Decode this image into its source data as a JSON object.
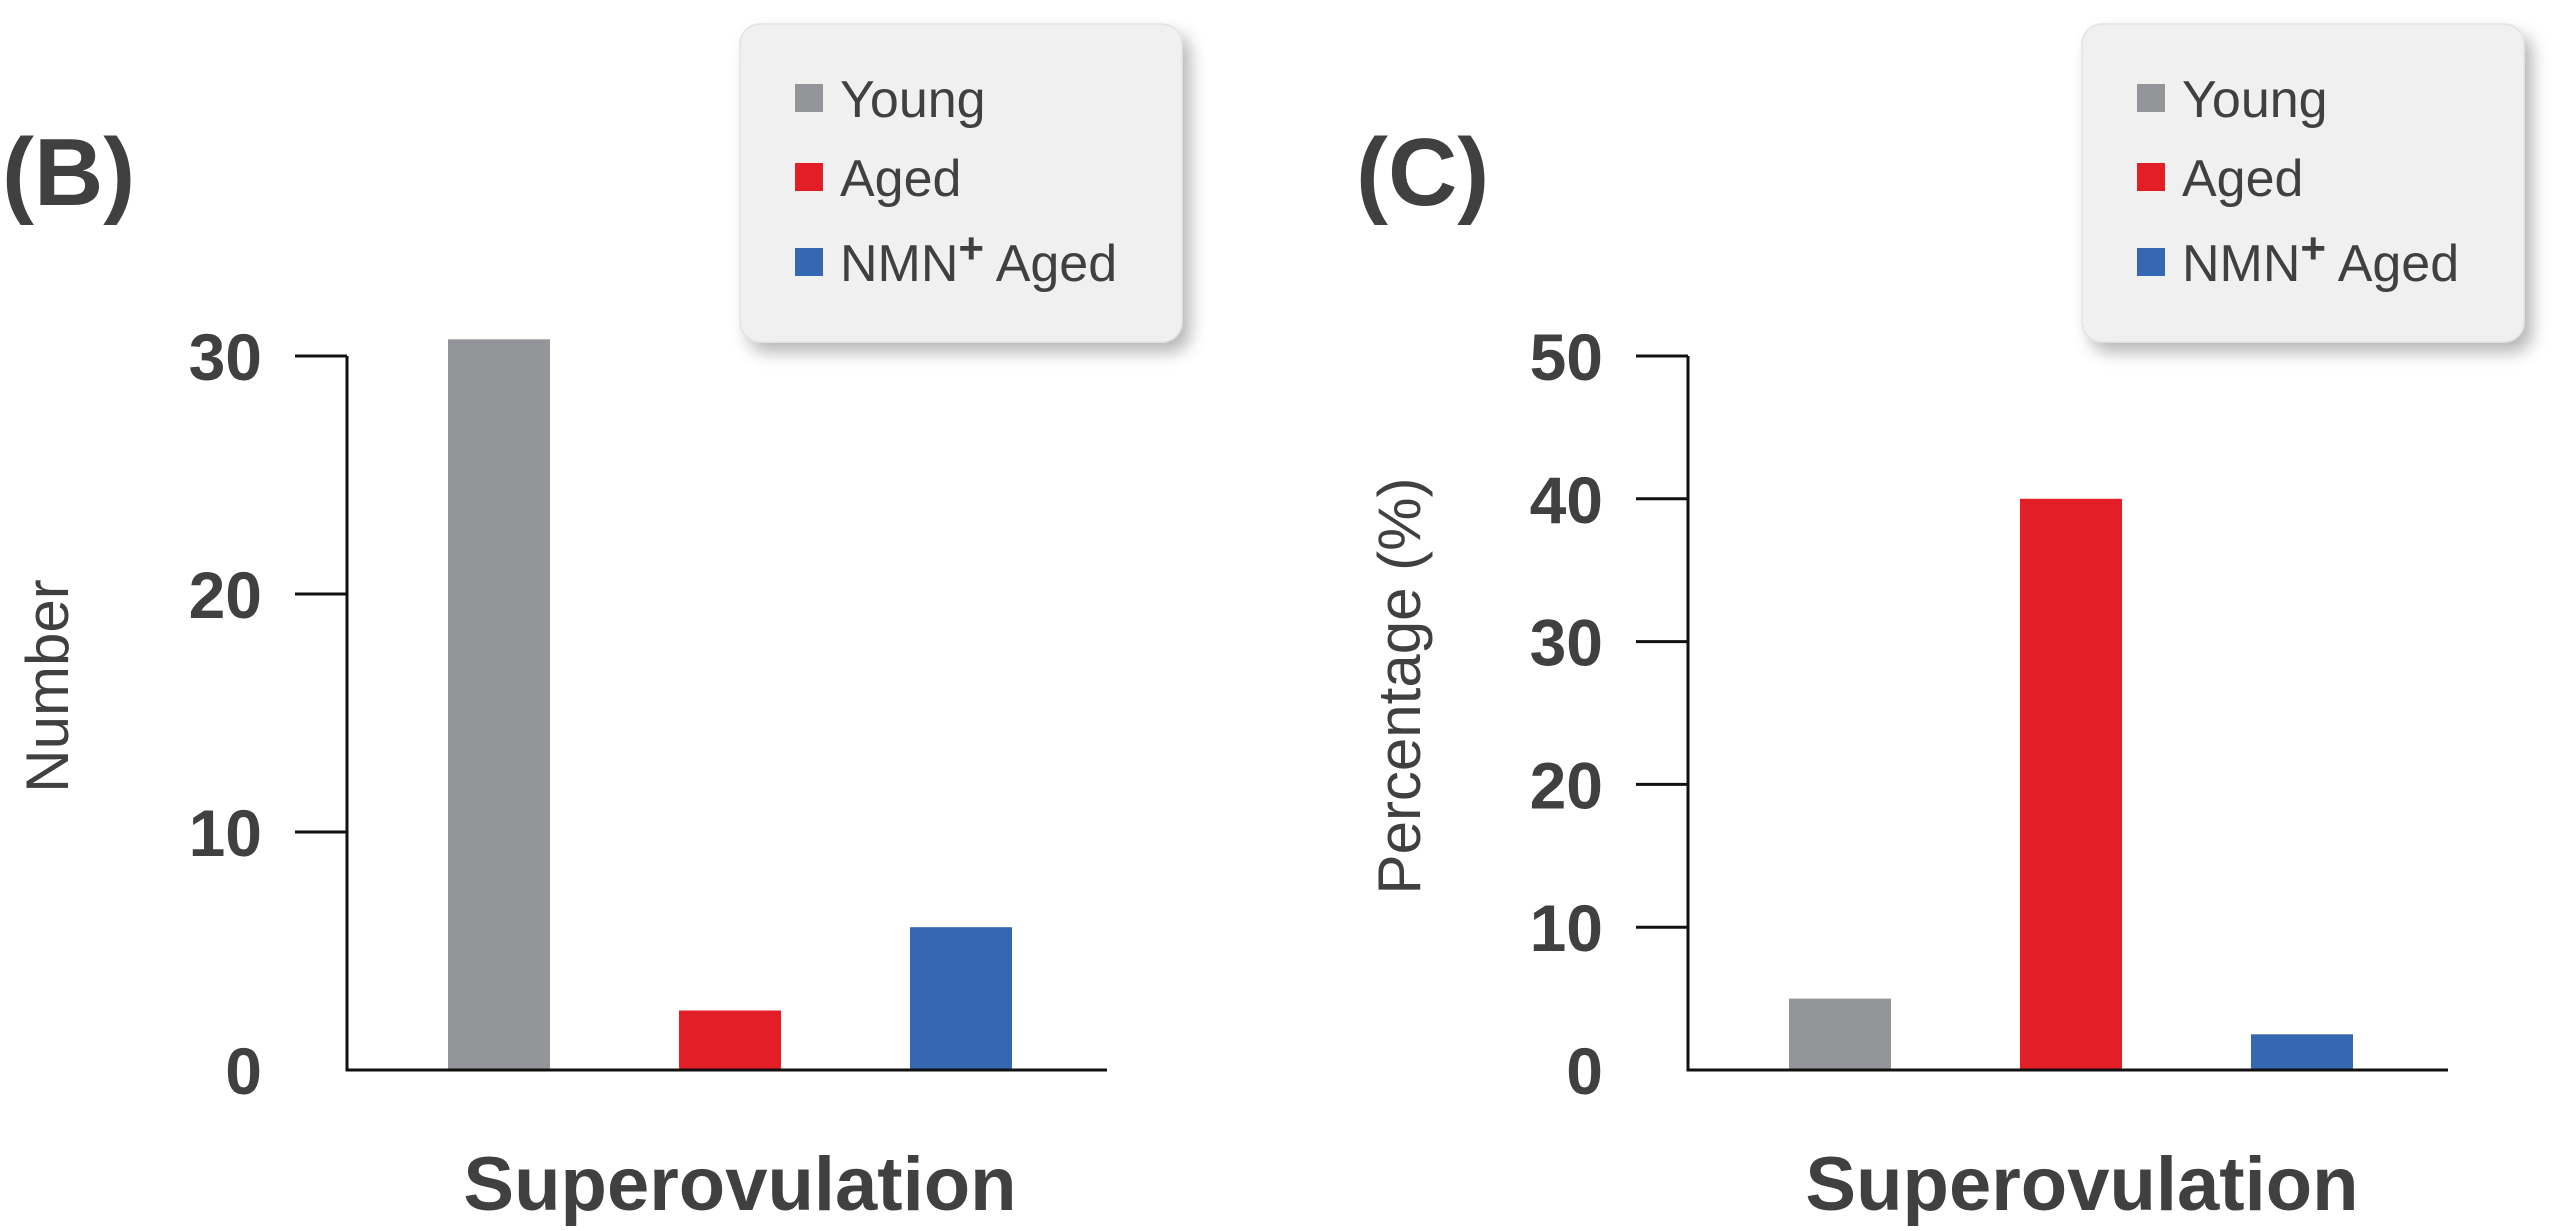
{
  "colors": {
    "young": "#939598",
    "aged": "#e31e26",
    "nmn_aged": "#3567b2",
    "axis": "#111111",
    "text": "#404041",
    "legend_bg": "#f0f0f0"
  },
  "chart_data": [
    {
      "type": "bar",
      "panel_label": "(B)",
      "xlabel": "Superovulation",
      "ylabel": "Number",
      "ylim": [
        0,
        30
      ],
      "yticks": [
        0,
        10,
        20,
        30
      ],
      "legend_position": "top-right",
      "series": [
        {
          "name": "Young",
          "sup": "",
          "name_suffix": "",
          "value": 30.7,
          "color": "#939598"
        },
        {
          "name": "Aged",
          "sup": "",
          "name_suffix": "",
          "value": 2.5,
          "color": "#e31e26"
        },
        {
          "name": "NMN",
          "sup": "+",
          "name_suffix": " Aged",
          "value": 6.0,
          "color": "#3567b2"
        }
      ]
    },
    {
      "type": "bar",
      "panel_label": "(C)",
      "xlabel": "Superovulation",
      "ylabel": "Percentage (%)",
      "ylim": [
        0,
        50
      ],
      "yticks": [
        0,
        10,
        20,
        30,
        40,
        50
      ],
      "legend_position": "top-right",
      "series": [
        {
          "name": "Young",
          "sup": "",
          "name_suffix": "",
          "value": 5.0,
          "color": "#939598"
        },
        {
          "name": "Aged",
          "sup": "",
          "name_suffix": "",
          "value": 40.0,
          "color": "#e31e26"
        },
        {
          "name": "NMN",
          "sup": "+",
          "name_suffix": " Aged",
          "value": 2.5,
          "color": "#3567b2"
        }
      ]
    }
  ]
}
